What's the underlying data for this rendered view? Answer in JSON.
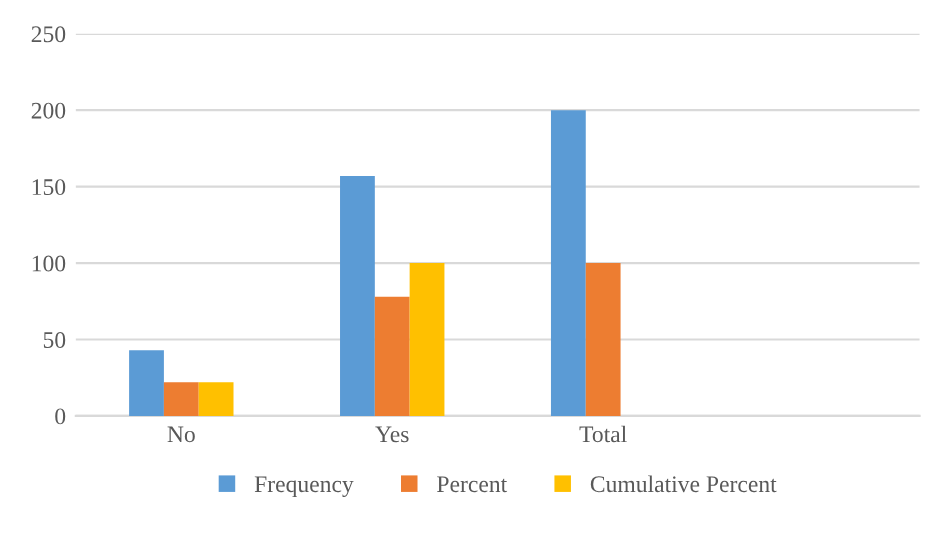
{
  "chart_data": {
    "type": "bar",
    "categories": [
      "No",
      "Yes",
      "Total",
      null
    ],
    "series": [
      {
        "name": "Frequency",
        "color": "#5b9bd5",
        "values": [
          43,
          157,
          200,
          null
        ]
      },
      {
        "name": "Percent",
        "color": "#ed7d31",
        "values": [
          22,
          78,
          100,
          null
        ]
      },
      {
        "name": "Cumulative Percent",
        "color": "#ffc000",
        "values": [
          22,
          100,
          null,
          null
        ]
      }
    ],
    "ylim": [
      0,
      250
    ],
    "yticks": [
      0,
      50,
      100,
      150,
      200,
      250
    ],
    "grid": "y",
    "legend": "bottom"
  }
}
